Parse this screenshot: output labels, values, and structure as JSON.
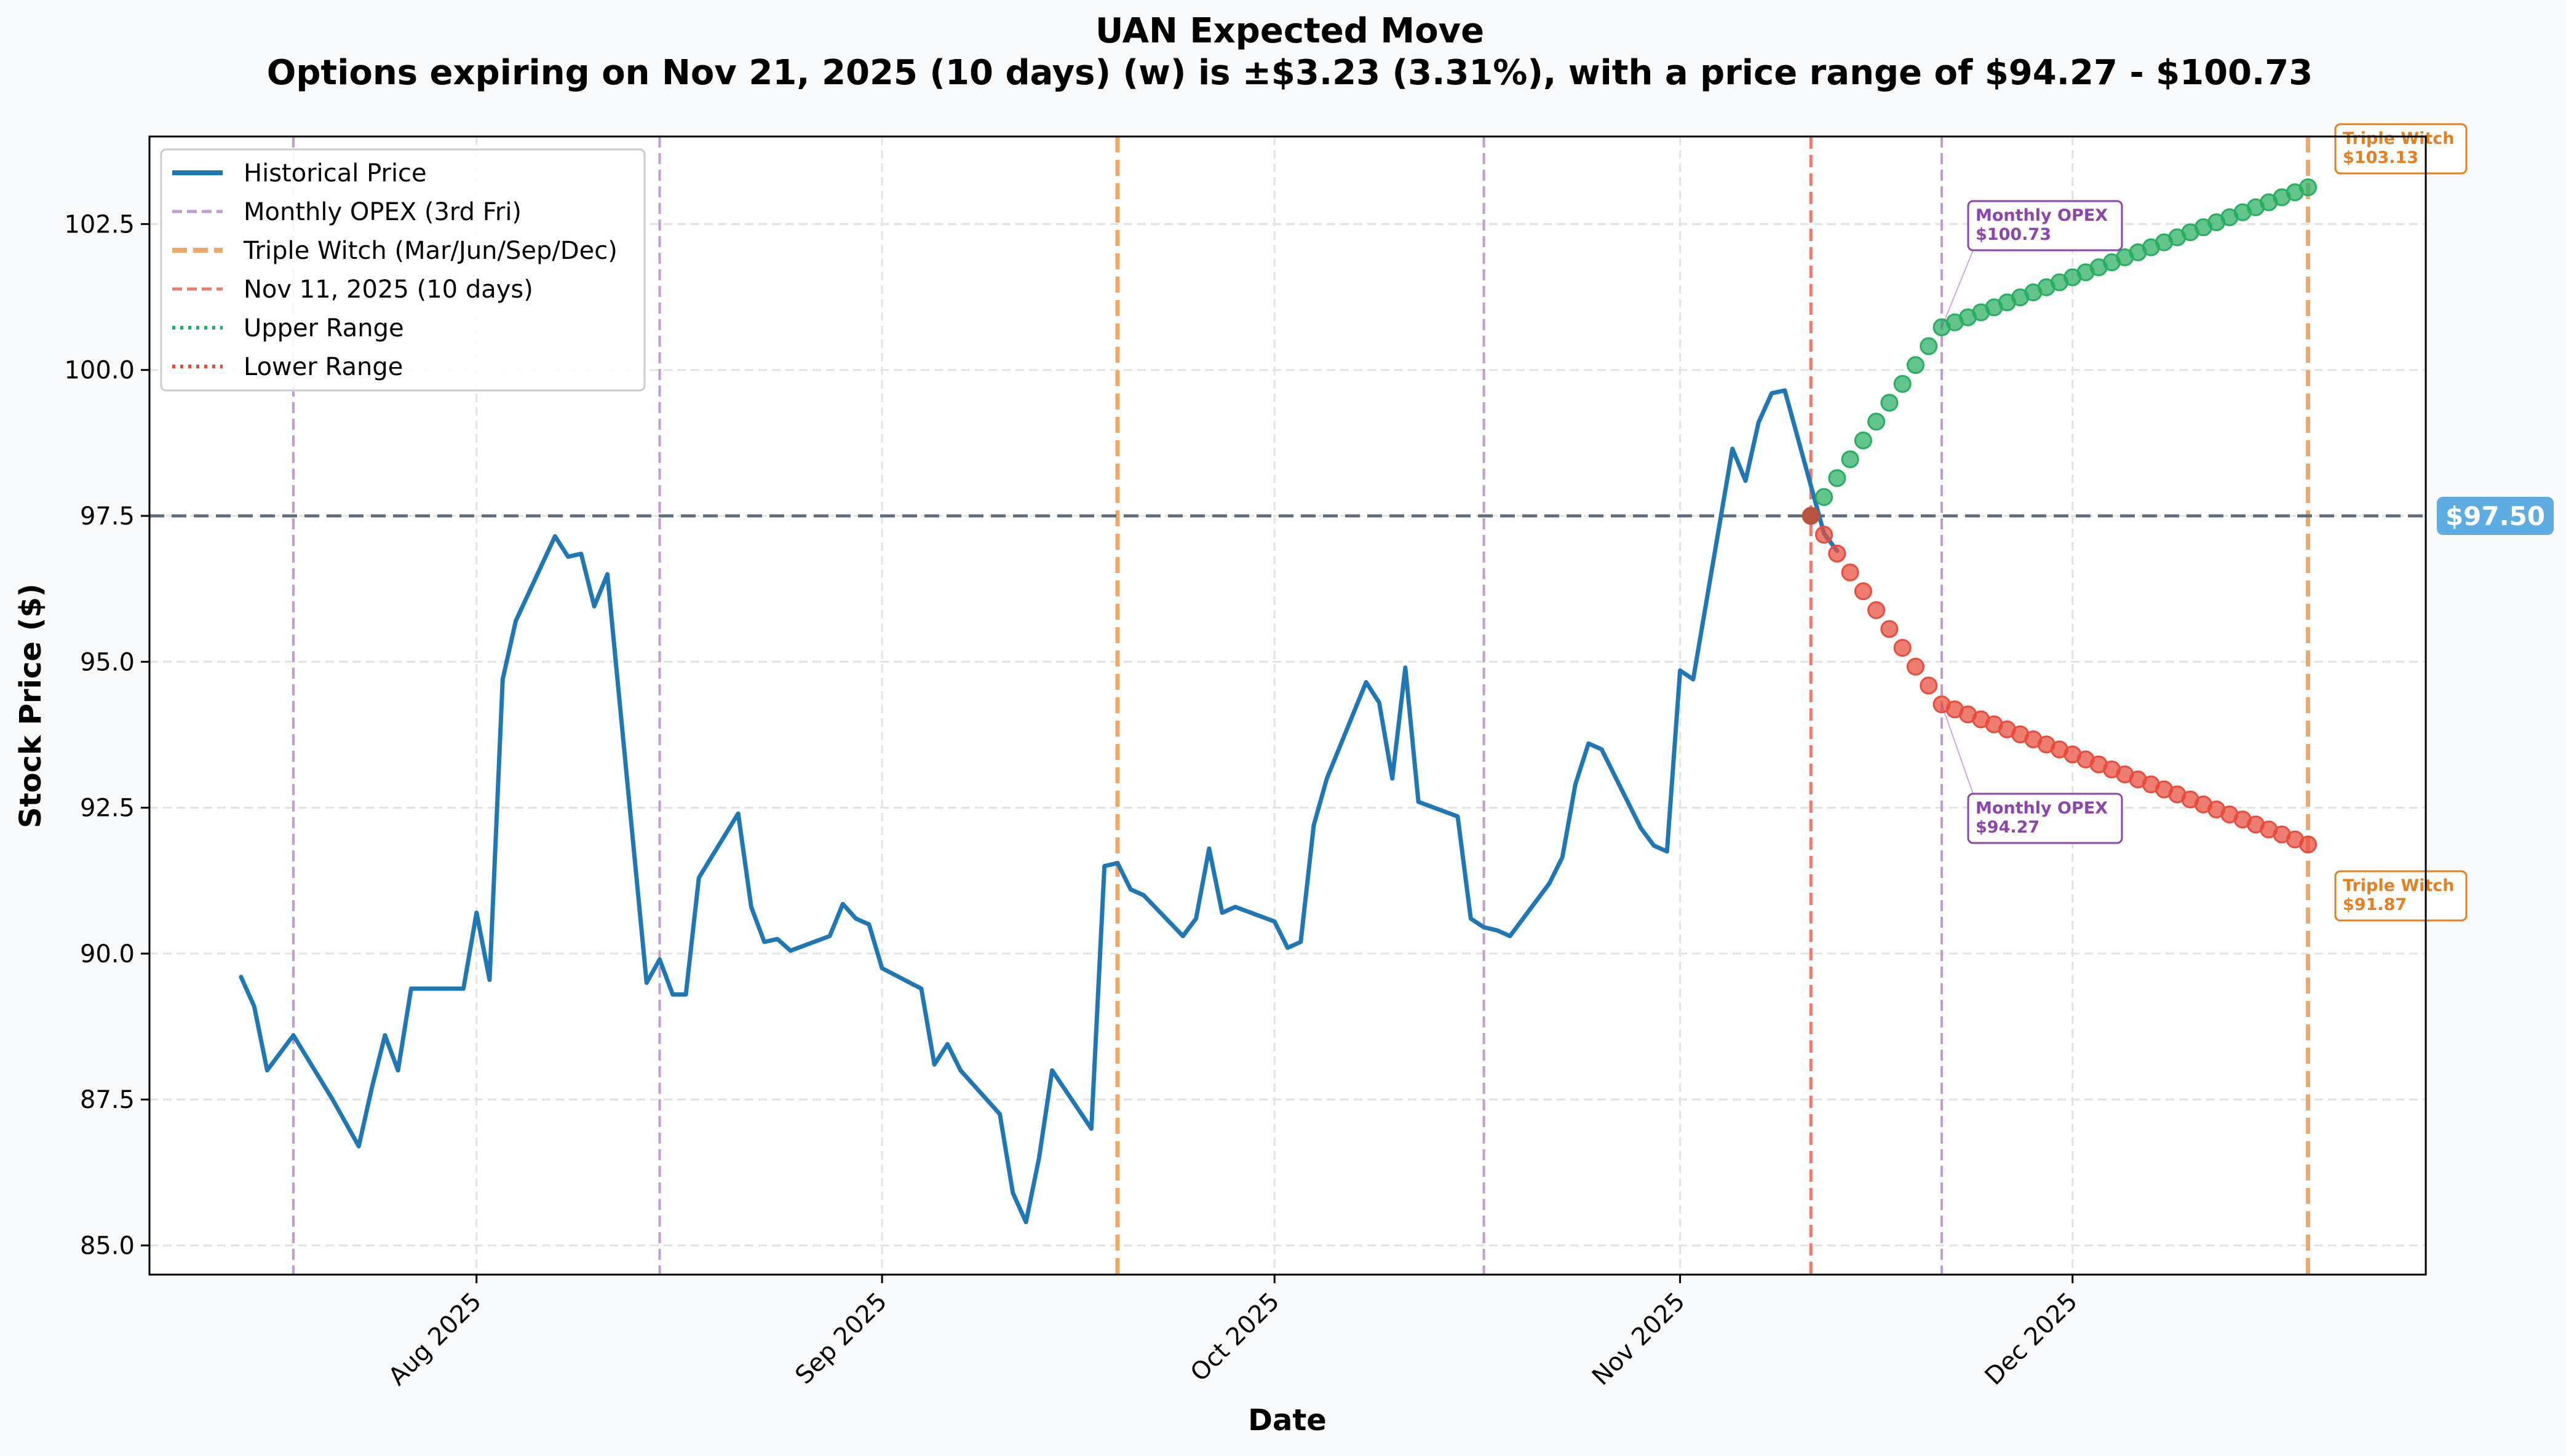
{
  "chart_data": {
    "type": "line",
    "title": "UAN Expected Move",
    "subtitle": "Options expiring on Nov 21, 2025 (10 days) (w) is ±$3.23 (3.31%), with a price range of $94.27 - $100.73",
    "xlabel": "Date",
    "ylabel": "Stock Price ($)",
    "ylim": [
      84.5,
      104.0
    ],
    "xlim": [
      "2025-07-07",
      "2025-12-28"
    ],
    "yticks": [
      85.0,
      87.5,
      90.0,
      92.5,
      95.0,
      97.5,
      100.0,
      102.5
    ],
    "ytick_labels": [
      "85.0",
      "87.5",
      "90.0",
      "92.5",
      "95.0",
      "97.5",
      "100.0",
      "102.5"
    ],
    "xticks": [
      "2025-08-01",
      "2025-09-01",
      "2025-10-01",
      "2025-11-01",
      "2025-12-01"
    ],
    "xtick_labels": [
      "Aug 2025",
      "Sep 2025",
      "Oct 2025",
      "Nov 2025",
      "Dec 2025"
    ],
    "grid": true,
    "legend_position": "top-left",
    "current_price": 97.5,
    "current_price_label": "$97.50",
    "colors": {
      "historical": "#1f77b4",
      "monthly_opex": "#c39bd3",
      "triple_witch": "#f0a868",
      "today": "#ec7b6f",
      "upper": "#27ae60",
      "lower": "#e74c3c",
      "current_price_line": "#5d6d7e",
      "current_price_badge": "#5dade2",
      "annot_purple": "#8e44ad",
      "annot_orange": "#e67e22"
    },
    "legend": [
      {
        "label": "Historical Price",
        "style": "solid",
        "color": "#1f77b4"
      },
      {
        "label": "Monthly OPEX (3rd Fri)",
        "style": "dashed",
        "color": "#c39bd3"
      },
      {
        "label": "Triple Witch (Mar/Jun/Sep/Dec)",
        "style": "dashed-thick",
        "color": "#f0a868"
      },
      {
        "label": "Nov 11, 2025 (10 days)",
        "style": "dashed",
        "color": "#ec7b6f"
      },
      {
        "label": "Upper Range",
        "style": "dotted",
        "color": "#27ae60"
      },
      {
        "label": "Lower Range",
        "style": "dotted",
        "color": "#e74c3c"
      }
    ],
    "vlines": [
      {
        "date": "2025-07-18",
        "kind": "monthly"
      },
      {
        "date": "2025-08-15",
        "kind": "monthly"
      },
      {
        "date": "2025-09-19",
        "kind": "triple"
      },
      {
        "date": "2025-10-17",
        "kind": "monthly"
      },
      {
        "date": "2025-11-11",
        "kind": "today"
      },
      {
        "date": "2025-11-21",
        "kind": "monthly"
      },
      {
        "date": "2025-12-19",
        "kind": "triple"
      }
    ],
    "historical": [
      [
        "2025-07-14",
        89.6
      ],
      [
        "2025-07-15",
        89.1
      ],
      [
        "2025-07-16",
        88.0
      ],
      [
        "2025-07-17",
        88.3
      ],
      [
        "2025-07-18",
        88.6
      ],
      [
        "2025-07-21",
        87.5
      ],
      [
        "2025-07-22",
        87.1
      ],
      [
        "2025-07-23",
        86.7
      ],
      [
        "2025-07-24",
        87.7
      ],
      [
        "2025-07-25",
        88.6
      ],
      [
        "2025-07-26",
        88.0
      ],
      [
        "2025-07-27",
        89.4
      ],
      [
        "2025-07-30",
        89.4
      ],
      [
        "2025-07-31",
        89.4
      ],
      [
        "2025-08-01",
        90.7
      ],
      [
        "2025-08-02",
        89.55
      ],
      [
        "2025-08-03",
        94.7
      ],
      [
        "2025-08-04",
        95.7
      ],
      [
        "2025-08-07",
        97.15
      ],
      [
        "2025-08-08",
        96.8
      ],
      [
        "2025-08-09",
        96.85
      ],
      [
        "2025-08-10",
        95.95
      ],
      [
        "2025-08-11",
        96.5
      ],
      [
        "2025-08-14",
        89.5
      ],
      [
        "2025-08-15",
        89.9
      ],
      [
        "2025-08-16",
        89.3
      ],
      [
        "2025-08-17",
        89.3
      ],
      [
        "2025-08-18",
        91.3
      ],
      [
        "2025-08-21",
        92.4
      ],
      [
        "2025-08-22",
        90.8
      ],
      [
        "2025-08-23",
        90.2
      ],
      [
        "2025-08-24",
        90.25
      ],
      [
        "2025-08-25",
        90.05
      ],
      [
        "2025-08-28",
        90.3
      ],
      [
        "2025-08-29",
        90.85
      ],
      [
        "2025-08-30",
        90.6
      ],
      [
        "2025-08-31",
        90.5
      ],
      [
        "2025-09-01",
        89.75
      ],
      [
        "2025-09-04",
        89.4
      ],
      [
        "2025-09-05",
        88.1
      ],
      [
        "2025-09-06",
        88.45
      ],
      [
        "2025-09-07",
        88.0
      ],
      [
        "2025-09-10",
        87.25
      ],
      [
        "2025-09-11",
        85.9
      ],
      [
        "2025-09-12",
        85.4
      ],
      [
        "2025-09-13",
        86.5
      ],
      [
        "2025-09-14",
        88.0
      ],
      [
        "2025-09-17",
        87.0
      ],
      [
        "2025-09-18",
        91.5
      ],
      [
        "2025-09-19",
        91.55
      ],
      [
        "2025-09-20",
        91.1
      ],
      [
        "2025-09-21",
        91.0
      ],
      [
        "2025-09-24",
        90.3
      ],
      [
        "2025-09-25",
        90.6
      ],
      [
        "2025-09-26",
        91.8
      ],
      [
        "2025-09-27",
        90.7
      ],
      [
        "2025-09-28",
        90.8
      ],
      [
        "2025-10-01",
        90.55
      ],
      [
        "2025-10-02",
        90.1
      ],
      [
        "2025-10-03",
        90.2
      ],
      [
        "2025-10-04",
        92.2
      ],
      [
        "2025-10-05",
        93.0
      ],
      [
        "2025-10-08",
        94.65
      ],
      [
        "2025-10-09",
        94.3
      ],
      [
        "2025-10-10",
        93.0
      ],
      [
        "2025-10-11",
        94.9
      ],
      [
        "2025-10-12",
        92.6
      ],
      [
        "2025-10-15",
        92.35
      ],
      [
        "2025-10-16",
        90.6
      ],
      [
        "2025-10-17",
        90.45
      ],
      [
        "2025-10-18",
        90.4
      ],
      [
        "2025-10-19",
        90.3
      ],
      [
        "2025-10-22",
        91.2
      ],
      [
        "2025-10-23",
        91.65
      ],
      [
        "2025-10-24",
        92.9
      ],
      [
        "2025-10-25",
        93.6
      ],
      [
        "2025-10-26",
        93.5
      ],
      [
        "2025-10-29",
        92.15
      ],
      [
        "2025-10-30",
        91.85
      ],
      [
        "2025-10-31",
        91.75
      ],
      [
        "2025-11-01",
        94.85
      ],
      [
        "2025-11-02",
        94.7
      ],
      [
        "2025-11-05",
        98.65
      ],
      [
        "2025-11-06",
        98.1
      ],
      [
        "2025-11-07",
        99.1
      ],
      [
        "2025-11-08",
        99.6
      ],
      [
        "2025-11-09",
        99.65
      ],
      [
        "2025-11-12",
        97.2
      ],
      [
        "2025-11-13",
        96.9
      ]
    ],
    "upper_range": {
      "start_date": "2025-11-11",
      "start_value": 97.5,
      "opex_date": "2025-11-21",
      "opex_value": 100.73,
      "end_date": "2025-12-19",
      "end_value": 103.13
    },
    "lower_range": {
      "start_date": "2025-11-11",
      "start_value": 97.5,
      "opex_date": "2025-11-21",
      "opex_value": 94.27,
      "end_date": "2025-12-19",
      "end_value": 91.87
    },
    "annotations": [
      {
        "id": "upper-opex",
        "title": "Monthly OPEX",
        "value": "$100.73",
        "color": "#8e44ad"
      },
      {
        "id": "lower-opex",
        "title": "Monthly OPEX",
        "value": "$94.27",
        "color": "#8e44ad"
      },
      {
        "id": "upper-tw",
        "title": "Triple Witch",
        "value": "$103.13",
        "color": "#e67e22"
      },
      {
        "id": "lower-tw",
        "title": "Triple Witch",
        "value": "$91.87",
        "color": "#e67e22"
      }
    ]
  }
}
